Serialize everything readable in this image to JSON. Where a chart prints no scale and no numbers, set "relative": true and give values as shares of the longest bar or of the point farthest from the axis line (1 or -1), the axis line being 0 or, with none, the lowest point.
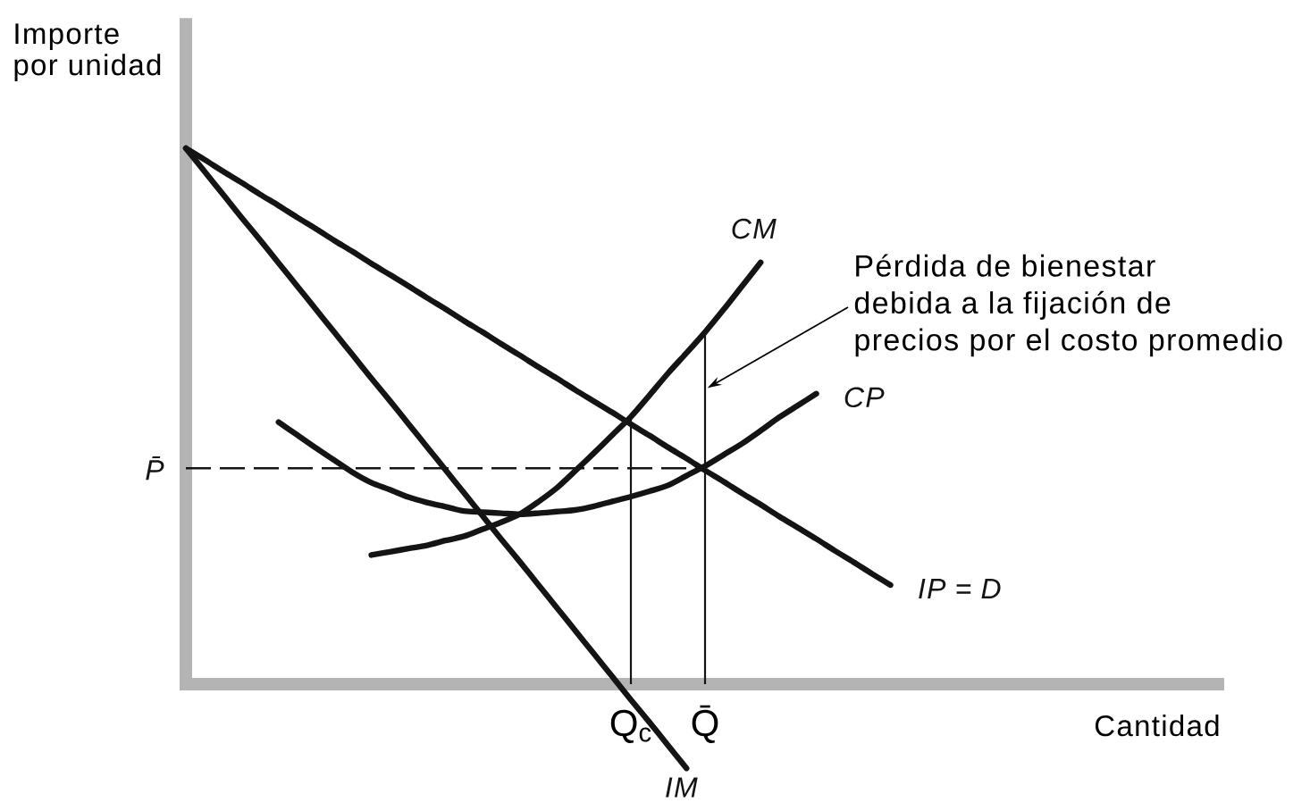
{
  "chart_data": {
    "type": "line",
    "relative": true,
    "xlabel": "Cantidad",
    "ylabel": "Importe por unidad",
    "tick_labels": "x",
    "categories": [
      null,
      null,
      null,
      null,
      null,
      null,
      null,
      null,
      null,
      null,
      null,
      null,
      null,
      null,
      null,
      null,
      null,
      null,
      null,
      null,
      null,
      null,
      null,
      null,
      "Q$_{c}$",
      null,
      null,
      null,
      "Q̄",
      null,
      null,
      null,
      null,
      null,
      null,
      null,
      null,
      null,
      null,
      null,
      null,
      null,
      null,
      null,
      null,
      null,
      null,
      null,
      null,
      null,
      null,
      null,
      null,
      null,
      null,
      null,
      null
    ],
    "series": [
      {
        "name": "IP = D",
        "color": "#141414",
        "values": [
          1.0,
          0.979,
          0.957,
          0.936,
          0.914,
          0.893,
          0.871,
          0.85,
          0.828,
          0.807,
          0.785,
          0.764,
          0.743,
          0.721,
          0.7,
          0.678,
          0.657,
          0.635,
          0.614,
          0.592,
          0.571,
          0.549,
          0.528,
          0.507,
          0.485,
          0.464,
          0.442,
          0.421,
          0.399,
          0.378,
          0.356,
          0.335,
          0.313,
          0.292,
          0.271,
          0.249,
          0.228,
          0.206,
          0.185,
          null,
          null,
          null,
          null,
          null,
          null,
          null,
          null,
          null,
          null,
          null,
          null,
          null,
          null,
          null,
          null,
          null,
          null
        ]
      },
      {
        "name": "IM",
        "color": "#141414",
        "values": [
          1.0,
          0.957,
          0.914,
          0.871,
          0.829,
          0.786,
          0.743,
          0.7,
          0.657,
          0.614,
          0.571,
          0.529,
          0.486,
          0.443,
          0.4,
          0.357,
          0.314,
          0.271,
          0.229,
          0.186,
          0.143,
          0.1,
          0.057,
          0.014,
          -0.029,
          -0.071,
          -0.114,
          -0.157,
          null,
          null,
          null,
          null,
          null,
          null,
          null,
          null,
          null,
          null,
          null,
          null,
          null,
          null,
          null,
          null,
          null,
          null,
          null,
          null,
          null,
          null,
          null,
          null,
          null,
          null,
          null,
          null,
          null
        ]
      },
      {
        "name": "CM",
        "color": "#141414",
        "values": [
          null,
          null,
          null,
          null,
          null,
          null,
          null,
          null,
          null,
          null,
          0.241,
          0.247,
          0.253,
          0.259,
          0.268,
          0.276,
          0.289,
          0.302,
          0.317,
          0.34,
          0.366,
          0.398,
          0.431,
          0.465,
          0.499,
          0.539,
          0.58,
          0.618,
          0.657,
          0.699,
          0.743,
          0.787,
          null,
          null,
          null,
          null,
          null,
          null,
          null,
          null,
          null,
          null,
          null,
          null,
          null,
          null,
          null,
          null,
          null,
          null,
          null,
          null,
          null,
          null,
          null,
          null,
          null
        ]
      },
      {
        "name": "CP",
        "color": "#141414",
        "values": [
          null,
          null,
          null,
          null,
          null,
          0.489,
          0.465,
          0.441,
          0.418,
          0.395,
          0.376,
          0.363,
          0.349,
          0.339,
          0.331,
          0.323,
          0.321,
          0.319,
          0.317,
          0.319,
          0.322,
          0.325,
          0.332,
          0.341,
          0.35,
          0.36,
          0.371,
          0.389,
          0.407,
          0.428,
          0.449,
          0.473,
          0.498,
          0.52,
          0.542,
          null,
          null,
          null,
          null,
          null,
          null,
          null,
          null,
          null,
          null,
          null,
          null,
          null,
          null,
          null,
          null,
          null,
          null,
          null,
          null,
          null,
          null
        ]
      },
      {
        "name": "P̄",
        "color": "#141414",
        "line_style": "dashed",
        "values": [
          0.403,
          0.403,
          0.403,
          0.403,
          0.403,
          0.403,
          0.403,
          0.403,
          0.403,
          0.403,
          0.403,
          0.403,
          0.403,
          0.403,
          0.403,
          0.403,
          0.403,
          0.403,
          0.403,
          0.403,
          0.403,
          0.403,
          0.403,
          0.403,
          0.403,
          0.403,
          0.403,
          0.403,
          0.403,
          null,
          null,
          null,
          null,
          null,
          null,
          null,
          null,
          null,
          null,
          null,
          null,
          null,
          null,
          null,
          null,
          null,
          null,
          null,
          null,
          null,
          null,
          null,
          null,
          null,
          null,
          null,
          null
        ]
      },
      {
        "type": "bar",
        "color": "#141414",
        "values": [
          null,
          null,
          null,
          null,
          null,
          null,
          null,
          null,
          null,
          null,
          null,
          null,
          null,
          null,
          null,
          null,
          null,
          null,
          null,
          null,
          null,
          null,
          null,
          null,
          0.497,
          null,
          null,
          null,
          0.66,
          null,
          null,
          null,
          null,
          null,
          null,
          null,
          null,
          null,
          null,
          null,
          null,
          null,
          null,
          null,
          null,
          null,
          null,
          null,
          null,
          null,
          null,
          null,
          null,
          null,
          null,
          null,
          null
        ]
      }
    ],
    "annotations": [
      {
        "text": "Pérdida de bienestar debida a la fijación de precios por el costo promedio",
        "x": "Q̄",
        "y": 0.55
      }
    ]
  }
}
